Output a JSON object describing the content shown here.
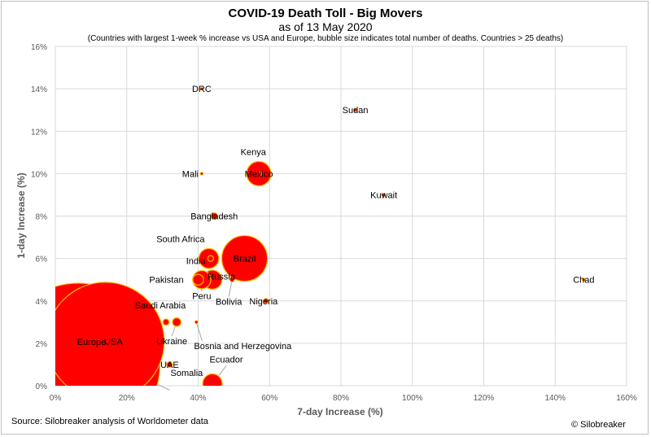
{
  "header": {
    "title": "COVID-19 Death Toll - Big Movers",
    "subtitle": "as of 13 May 2020",
    "note": "(Countries with largest 1-week % increase vs USA and Europe, bubble size indicates total number of deaths. Countries > 25 deaths)"
  },
  "footer": {
    "source": "Source: Silobreaker analysis of Worldometer data",
    "copyright": "© Silobreaker"
  },
  "colors": {
    "bubble_fill": "#ff0000",
    "bubble_edge": "#ffc000",
    "grid": "#d9d9d9",
    "leader_line": "#a6a6a6"
  },
  "chart_data": {
    "type": "scatter",
    "bubble": true,
    "xlabel": "7-day Increase (%)",
    "ylabel": "1-day Increase (%)",
    "xlim": [
      0,
      160
    ],
    "ylim": [
      0,
      16
    ],
    "x_ticks": [
      "0%",
      "20%",
      "40%",
      "60%",
      "80%",
      "100%",
      "120%",
      "140%",
      "160%"
    ],
    "y_ticks": [
      "0%",
      "2%",
      "4%",
      "6%",
      "8%",
      "10%",
      "12%",
      "14%",
      "16%"
    ],
    "grid": true,
    "legend": "none",
    "points": [
      {
        "label": "Europe",
        "x": 6.5,
        "y": 1.0,
        "size": 160000
      },
      {
        "label": "USA",
        "x": 14,
        "y": 2.1,
        "size": 84000
      },
      {
        "label": "Brazil",
        "x": 53,
        "y": 6.0,
        "size": 12600
      },
      {
        "label": "Mexico",
        "x": 57,
        "y": 10.0,
        "size": 3600
      },
      {
        "label": "India",
        "x": 43,
        "y": 6.0,
        "size": 2400
      },
      {
        "label": "Russia",
        "x": 44,
        "y": 5.0,
        "size": 2200
      },
      {
        "label": "Peru",
        "x": 41,
        "y": 5.0,
        "size": 2000
      },
      {
        "label": "Ecuador",
        "x": 44,
        "y": 0.1,
        "size": 2300
      },
      {
        "label": "Pakistan",
        "x": 40,
        "y": 5.0,
        "size": 700
      },
      {
        "label": "South Africa",
        "x": 43.5,
        "y": 6.0,
        "size": 200
      },
      {
        "label": "Saudi Arabia",
        "x": 31,
        "y": 3.0,
        "size": 240
      },
      {
        "label": "Ukraine",
        "x": 34,
        "y": 3.0,
        "size": 450
      },
      {
        "label": "Bosnia and Herzegovina",
        "x": 39.5,
        "y": 3.0,
        "size": 60
      },
      {
        "label": "Bangladesh",
        "x": 44.5,
        "y": 8.0,
        "size": 270
      },
      {
        "label": "Bolivia",
        "x": 49.5,
        "y": 5.0,
        "size": 120
      },
      {
        "label": "Nigeria",
        "x": 59,
        "y": 4.0,
        "size": 150
      },
      {
        "label": "Kenya",
        "x": 57.5,
        "y": 10.0,
        "size": 35
      },
      {
        "label": "Mali",
        "x": 41,
        "y": 10.0,
        "size": 40
      },
      {
        "label": "DRC",
        "x": 41,
        "y": 14.0,
        "size": 50
      },
      {
        "label": "Sudan",
        "x": 84,
        "y": 13.0,
        "size": 60
      },
      {
        "label": "Kuwait",
        "x": 92,
        "y": 9.0,
        "size": 70
      },
      {
        "label": "Chad",
        "x": 148,
        "y": 5.0,
        "size": 50
      },
      {
        "label": "UAE",
        "x": 32,
        "y": 1.0,
        "size": 200
      },
      {
        "label": "Somalia",
        "x": 32,
        "y": -0.2,
        "size": 40
      }
    ]
  }
}
